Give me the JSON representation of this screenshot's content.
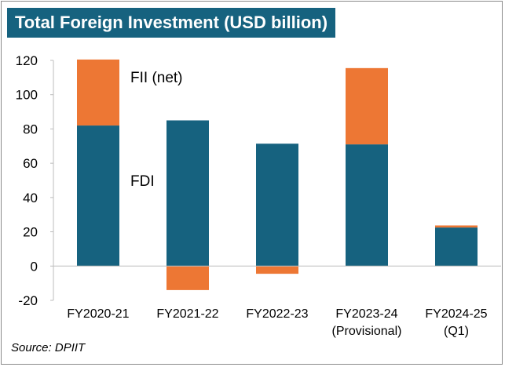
{
  "title": "Total Foreign Investment (USD billion)",
  "source": "Source: DPIIT",
  "colors": {
    "fdi": "#16627f",
    "fii": "#ed7734",
    "title_bg": "#16627f"
  },
  "chart_data": {
    "type": "bar",
    "stacked": true,
    "title": "Total Foreign Investment (USD billion)",
    "categories": [
      [
        "FY2020-21"
      ],
      [
        "FY2021-22"
      ],
      [
        "FY2022-23"
      ],
      [
        "FY2023-24",
        "(Provisional)"
      ],
      [
        "FY2024-25",
        "(Q1)"
      ]
    ],
    "series": [
      {
        "name": "FDI",
        "values": [
          82,
          85,
          71.4,
          71,
          22.5
        ]
      },
      {
        "name": "FII (net)",
        "values": [
          38.5,
          -14,
          -4.5,
          44.5,
          1.2
        ]
      }
    ],
    "ylim": [
      -20,
      120
    ],
    "yticks": [
      -20,
      0,
      20,
      40,
      60,
      80,
      100,
      120
    ],
    "grid": false,
    "legend": "inline labels"
  }
}
